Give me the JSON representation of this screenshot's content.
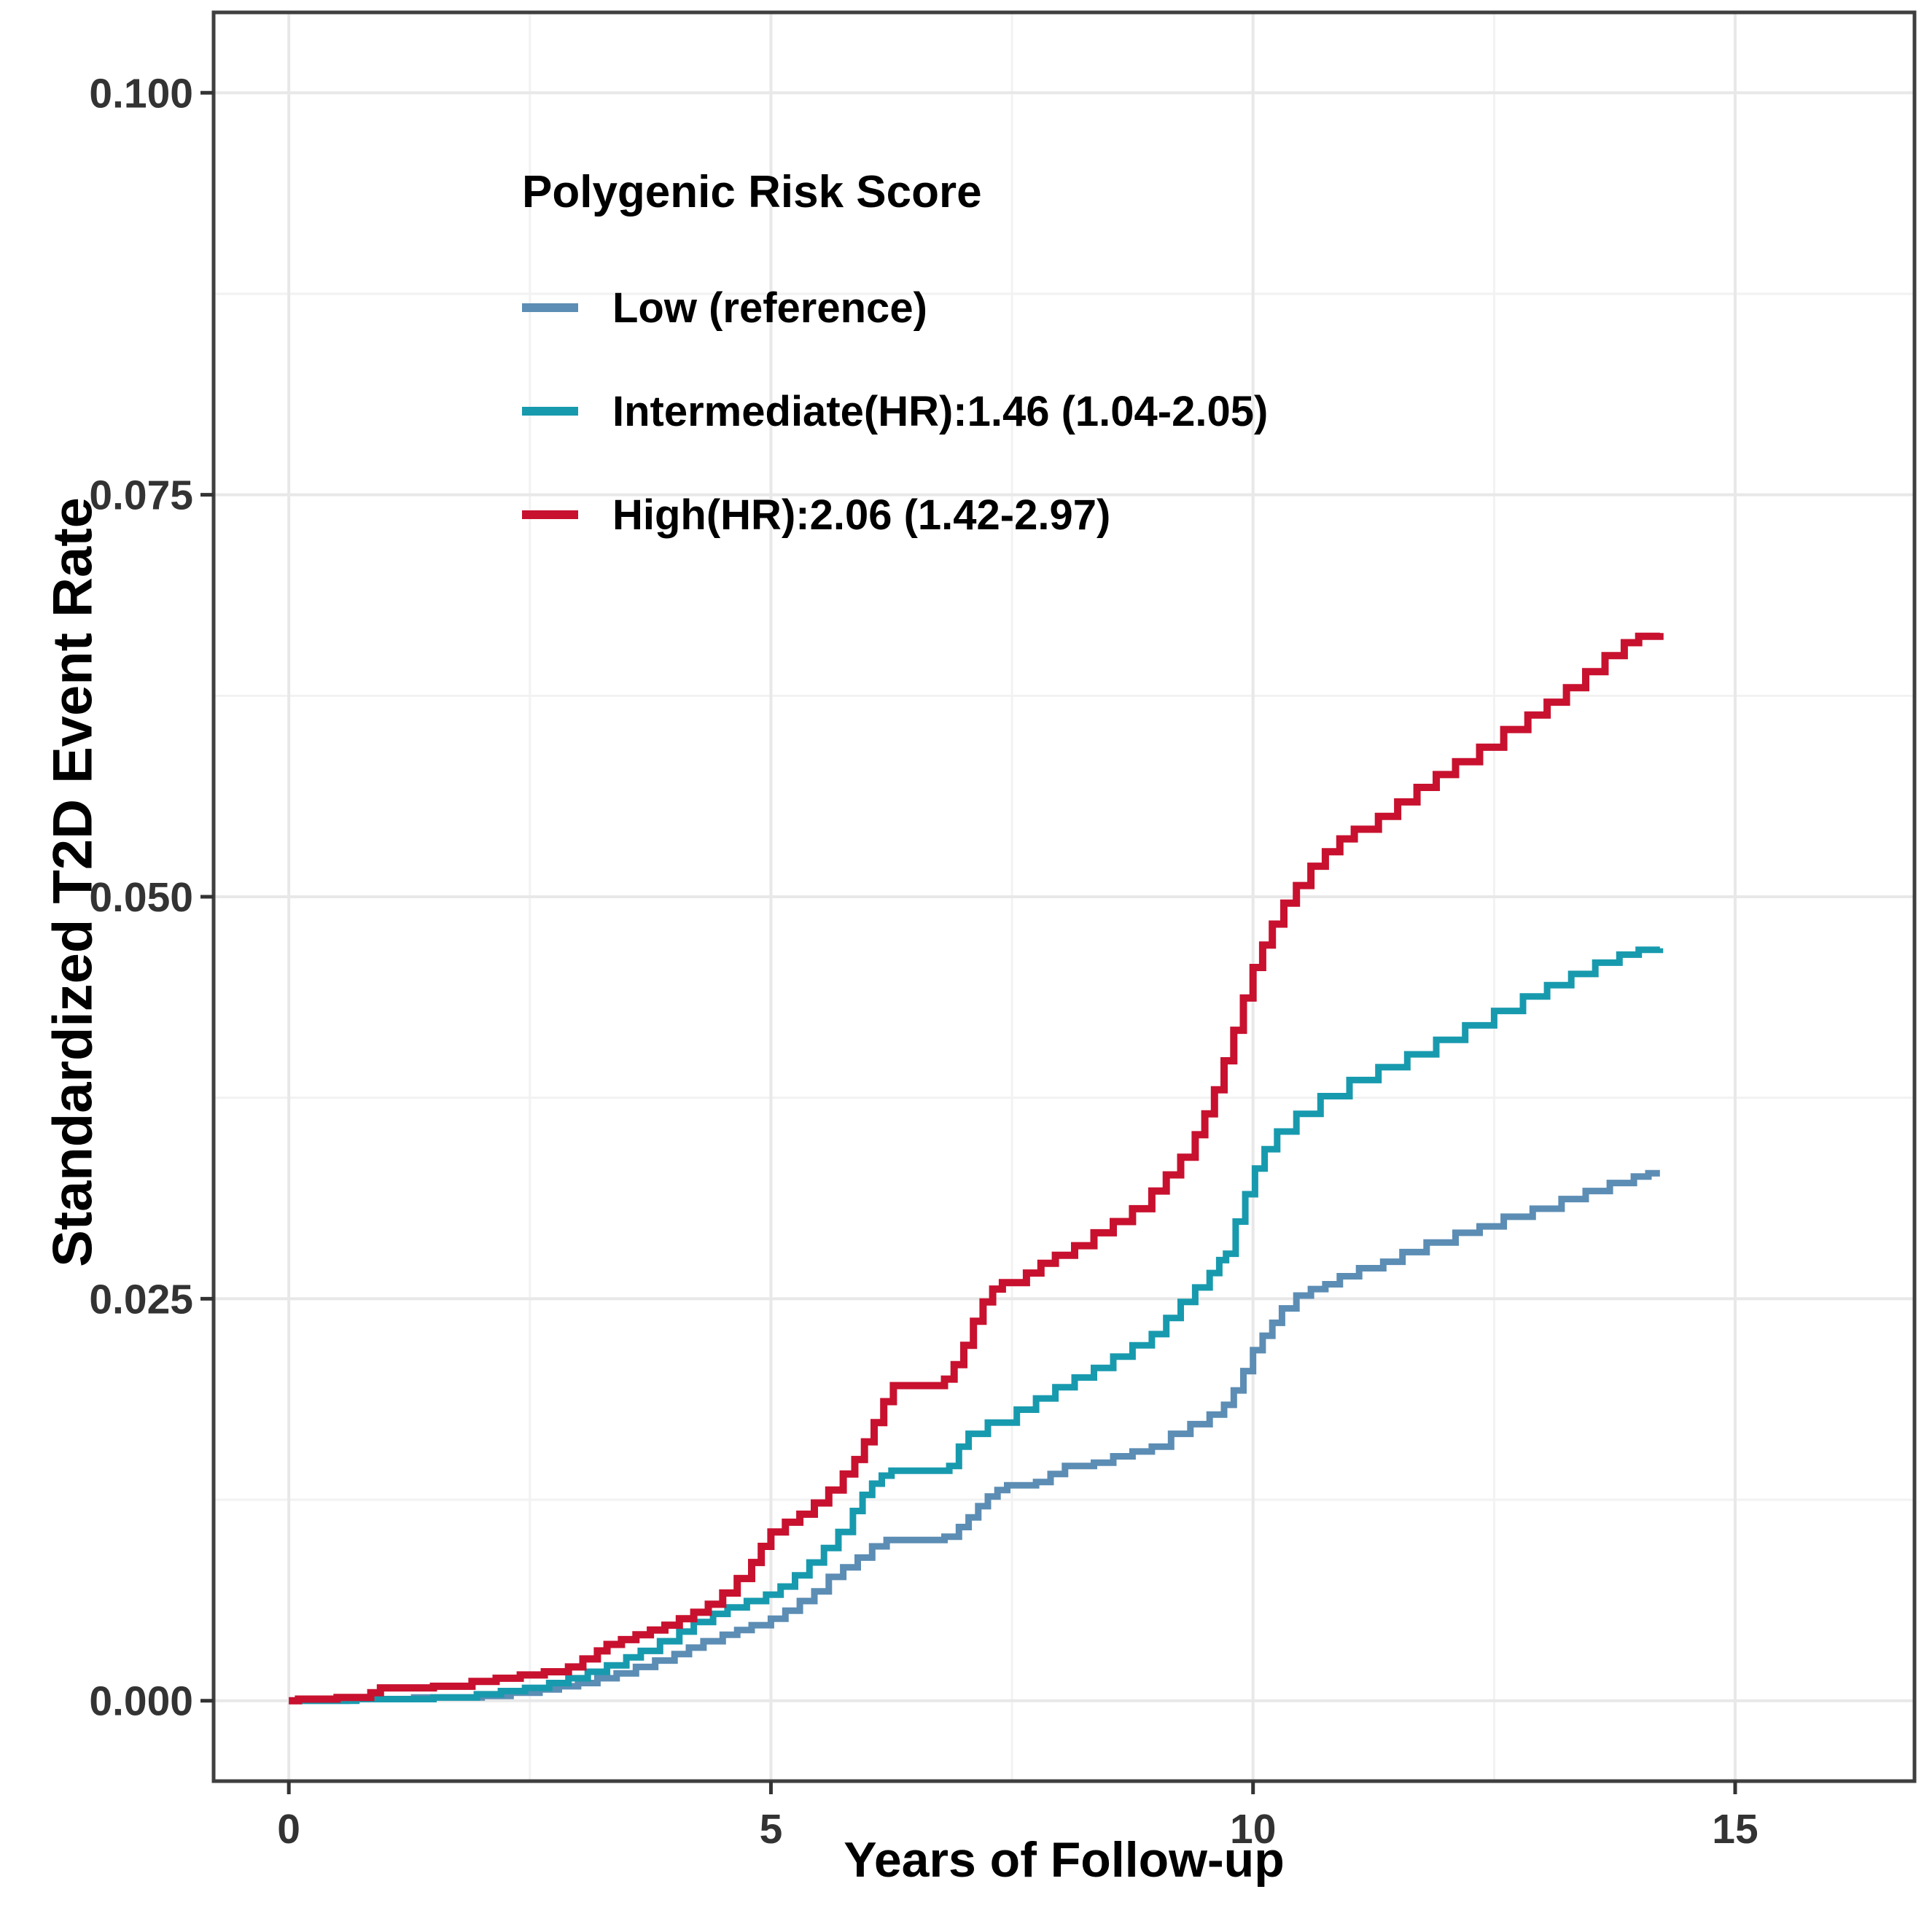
{
  "page": {
    "background": "#FFFFFF"
  },
  "chart_data": {
    "type": "line",
    "subtype": "step-after",
    "title": "",
    "xlabel": "Years of Follow-up",
    "ylabel": "Standardized T2D Event Rate",
    "xlim": [
      -0.78,
      16.86
    ],
    "ylim": [
      -0.005,
      0.105
    ],
    "x_major_ticks": [
      0,
      5,
      10,
      15
    ],
    "x_minor_ticks": [
      2.5,
      7.5,
      12.5
    ],
    "y_major_ticks": [
      0,
      0.025,
      0.05,
      0.075,
      0.1
    ],
    "y_tick_labels": [
      "0.000",
      "0.025",
      "0.050",
      "0.075",
      "0.100"
    ],
    "y_minor_ticks": [
      0.0125,
      0.0375,
      0.0625,
      0.0875
    ],
    "grid": "major+minor",
    "legend": {
      "title": "Polygenic Risk Score",
      "position": "inside top-left"
    },
    "styles": {
      "grid_major": "#E8E8E8",
      "grid_minor": "#F2F2F2",
      "panel_border": "#3F3F3F",
      "tick_color": "#333333",
      "tick_label_color": "#333333",
      "axis_title_color": "#000000",
      "background": "#FFFFFF"
    },
    "series": [
      {
        "name": "Low (reference)",
        "color": "#5C8DB4",
        "points": [
          [
            0,
            0
          ],
          [
            0.6,
            0.0001
          ],
          [
            1.3,
            0.0002
          ],
          [
            2.0,
            0.0003
          ],
          [
            2.3,
            0.0005
          ],
          [
            2.6,
            0.0007
          ],
          [
            2.8,
            0.0009
          ],
          [
            3.0,
            0.0011
          ],
          [
            3.2,
            0.0014
          ],
          [
            3.4,
            0.0017
          ],
          [
            3.6,
            0.0021
          ],
          [
            3.8,
            0.0025
          ],
          [
            4.0,
            0.0029
          ],
          [
            4.15,
            0.0033
          ],
          [
            4.3,
            0.0037
          ],
          [
            4.5,
            0.0041
          ],
          [
            4.65,
            0.0044
          ],
          [
            4.8,
            0.0047
          ],
          [
            5.0,
            0.0051
          ],
          [
            5.15,
            0.0056
          ],
          [
            5.3,
            0.0062
          ],
          [
            5.45,
            0.0068
          ],
          [
            5.6,
            0.0077
          ],
          [
            5.75,
            0.0083
          ],
          [
            5.9,
            0.0089
          ],
          [
            6.05,
            0.0096
          ],
          [
            6.2,
            0.01
          ],
          [
            6.8,
            0.0102
          ],
          [
            6.95,
            0.0108
          ],
          [
            7.05,
            0.0114
          ],
          [
            7.15,
            0.0121
          ],
          [
            7.25,
            0.0127
          ],
          [
            7.35,
            0.0131
          ],
          [
            7.45,
            0.0134
          ],
          [
            7.75,
            0.0136
          ],
          [
            7.9,
            0.0141
          ],
          [
            8.05,
            0.0146
          ],
          [
            8.35,
            0.0148
          ],
          [
            8.55,
            0.0152
          ],
          [
            8.75,
            0.0155
          ],
          [
            8.95,
            0.0158
          ],
          [
            9.15,
            0.0166
          ],
          [
            9.35,
            0.0172
          ],
          [
            9.55,
            0.0178
          ],
          [
            9.7,
            0.0184
          ],
          [
            9.8,
            0.0193
          ],
          [
            9.9,
            0.0205
          ],
          [
            10.0,
            0.0218
          ],
          [
            10.1,
            0.0227
          ],
          [
            10.2,
            0.0235
          ],
          [
            10.3,
            0.0244
          ],
          [
            10.45,
            0.0252
          ],
          [
            10.6,
            0.0256
          ],
          [
            10.75,
            0.0259
          ],
          [
            10.9,
            0.0264
          ],
          [
            11.1,
            0.0269
          ],
          [
            11.35,
            0.0273
          ],
          [
            11.55,
            0.0279
          ],
          [
            11.8,
            0.0285
          ],
          [
            12.1,
            0.0291
          ],
          [
            12.35,
            0.0295
          ],
          [
            12.6,
            0.0301
          ],
          [
            12.9,
            0.0306
          ],
          [
            13.2,
            0.0312
          ],
          [
            13.45,
            0.0317
          ],
          [
            13.7,
            0.0322
          ],
          [
            13.95,
            0.0326
          ],
          [
            14.1,
            0.0328
          ],
          [
            14.22,
            0.0328
          ]
        ]
      },
      {
        "name": "Intermediate(HR):1.46 (1.04-2.05)",
        "color": "#189AAE",
        "points": [
          [
            0,
            0
          ],
          [
            0.7,
            0.0001
          ],
          [
            1.5,
            0.0002
          ],
          [
            1.95,
            0.0004
          ],
          [
            2.2,
            0.0006
          ],
          [
            2.45,
            0.0008
          ],
          [
            2.7,
            0.0011
          ],
          [
            2.9,
            0.0014
          ],
          [
            3.1,
            0.0018
          ],
          [
            3.3,
            0.0022
          ],
          [
            3.5,
            0.0027
          ],
          [
            3.65,
            0.0031
          ],
          [
            3.85,
            0.0037
          ],
          [
            4.05,
            0.0043
          ],
          [
            4.2,
            0.0049
          ],
          [
            4.4,
            0.0054
          ],
          [
            4.55,
            0.0058
          ],
          [
            4.75,
            0.0062
          ],
          [
            4.95,
            0.0066
          ],
          [
            5.1,
            0.0071
          ],
          [
            5.25,
            0.0078
          ],
          [
            5.4,
            0.0086
          ],
          [
            5.55,
            0.0095
          ],
          [
            5.7,
            0.0105
          ],
          [
            5.85,
            0.0118
          ],
          [
            5.95,
            0.0128
          ],
          [
            6.05,
            0.0135
          ],
          [
            6.15,
            0.014
          ],
          [
            6.25,
            0.0143
          ],
          [
            6.85,
            0.0146
          ],
          [
            6.95,
            0.0158
          ],
          [
            7.05,
            0.0166
          ],
          [
            7.25,
            0.0173
          ],
          [
            7.55,
            0.0181
          ],
          [
            7.75,
            0.0188
          ],
          [
            7.95,
            0.0195
          ],
          [
            8.15,
            0.0201
          ],
          [
            8.35,
            0.0207
          ],
          [
            8.55,
            0.0214
          ],
          [
            8.75,
            0.0221
          ],
          [
            8.95,
            0.0228
          ],
          [
            9.1,
            0.0238
          ],
          [
            9.25,
            0.0248
          ],
          [
            9.4,
            0.0257
          ],
          [
            9.55,
            0.0266
          ],
          [
            9.65,
            0.0274
          ],
          [
            9.72,
            0.0278
          ],
          [
            9.82,
            0.0298
          ],
          [
            9.92,
            0.0315
          ],
          [
            10.02,
            0.0331
          ],
          [
            10.12,
            0.0343
          ],
          [
            10.25,
            0.0354
          ],
          [
            10.45,
            0.0365
          ],
          [
            10.7,
            0.0376
          ],
          [
            11.0,
            0.0386
          ],
          [
            11.3,
            0.0394
          ],
          [
            11.6,
            0.0402
          ],
          [
            11.9,
            0.0411
          ],
          [
            12.2,
            0.042
          ],
          [
            12.5,
            0.0429
          ],
          [
            12.8,
            0.0438
          ],
          [
            13.05,
            0.0445
          ],
          [
            13.3,
            0.0452
          ],
          [
            13.55,
            0.0459
          ],
          [
            13.8,
            0.0464
          ],
          [
            14.0,
            0.0467
          ],
          [
            14.22,
            0.0468
          ]
        ]
      },
      {
        "name": "High(HR):2.06 (1.42-2.97)",
        "color": "#C8112F",
        "points": [
          [
            0,
            0
          ],
          [
            0.1,
            0.0001
          ],
          [
            0.5,
            0.0002
          ],
          [
            0.85,
            0.0005
          ],
          [
            0.95,
            0.0008
          ],
          [
            1.5,
            0.0009
          ],
          [
            1.9,
            0.0012
          ],
          [
            2.15,
            0.0014
          ],
          [
            2.4,
            0.0016
          ],
          [
            2.65,
            0.0018
          ],
          [
            2.9,
            0.0021
          ],
          [
            3.05,
            0.0026
          ],
          [
            3.2,
            0.0031
          ],
          [
            3.3,
            0.0035
          ],
          [
            3.45,
            0.0038
          ],
          [
            3.6,
            0.0041
          ],
          [
            3.75,
            0.0044
          ],
          [
            3.9,
            0.0047
          ],
          [
            4.05,
            0.0051
          ],
          [
            4.2,
            0.0055
          ],
          [
            4.35,
            0.006
          ],
          [
            4.5,
            0.0067
          ],
          [
            4.65,
            0.0076
          ],
          [
            4.8,
            0.0086
          ],
          [
            4.9,
            0.0096
          ],
          [
            5.0,
            0.0105
          ],
          [
            5.15,
            0.0111
          ],
          [
            5.3,
            0.0116
          ],
          [
            5.45,
            0.0123
          ],
          [
            5.6,
            0.0131
          ],
          [
            5.75,
            0.0141
          ],
          [
            5.87,
            0.015
          ],
          [
            5.97,
            0.0161
          ],
          [
            6.07,
            0.0173
          ],
          [
            6.17,
            0.0186
          ],
          [
            6.27,
            0.0196
          ],
          [
            6.8,
            0.02
          ],
          [
            6.9,
            0.0209
          ],
          [
            7.0,
            0.0221
          ],
          [
            7.1,
            0.0236
          ],
          [
            7.2,
            0.0248
          ],
          [
            7.3,
            0.0256
          ],
          [
            7.4,
            0.026
          ],
          [
            7.65,
            0.0266
          ],
          [
            7.8,
            0.0272
          ],
          [
            7.95,
            0.0277
          ],
          [
            8.15,
            0.0283
          ],
          [
            8.35,
            0.0291
          ],
          [
            8.55,
            0.0298
          ],
          [
            8.75,
            0.0306
          ],
          [
            8.95,
            0.0317
          ],
          [
            9.1,
            0.0327
          ],
          [
            9.25,
            0.0338
          ],
          [
            9.4,
            0.0352
          ],
          [
            9.5,
            0.0365
          ],
          [
            9.6,
            0.038
          ],
          [
            9.7,
            0.0398
          ],
          [
            9.8,
            0.0417
          ],
          [
            9.9,
            0.0437
          ],
          [
            10.0,
            0.0456
          ],
          [
            10.1,
            0.047
          ],
          [
            10.2,
            0.0483
          ],
          [
            10.32,
            0.0496
          ],
          [
            10.45,
            0.0507
          ],
          [
            10.6,
            0.0519
          ],
          [
            10.75,
            0.0528
          ],
          [
            10.9,
            0.0536
          ],
          [
            11.05,
            0.0542
          ],
          [
            11.3,
            0.055
          ],
          [
            11.5,
            0.0559
          ],
          [
            11.7,
            0.0568
          ],
          [
            11.9,
            0.0576
          ],
          [
            12.1,
            0.0584
          ],
          [
            12.35,
            0.0593
          ],
          [
            12.6,
            0.0604
          ],
          [
            12.85,
            0.0613
          ],
          [
            13.05,
            0.0621
          ],
          [
            13.25,
            0.063
          ],
          [
            13.45,
            0.064
          ],
          [
            13.65,
            0.065
          ],
          [
            13.85,
            0.0658
          ],
          [
            14.0,
            0.0662
          ],
          [
            14.22,
            0.0664
          ]
        ]
      }
    ]
  }
}
